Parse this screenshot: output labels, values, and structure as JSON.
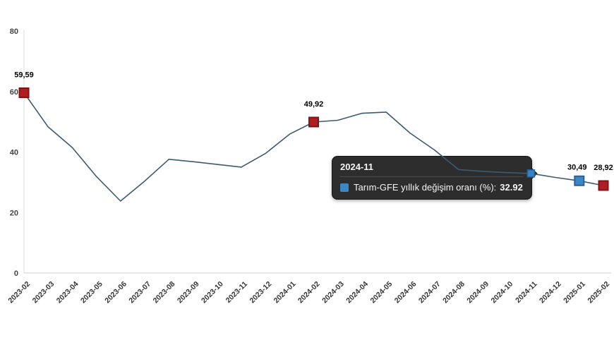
{
  "chart_data": {
    "type": "line",
    "series_name": "Tarım-GFE yıllık değişim oranı (%)",
    "categories": [
      "2023-02",
      "2023-03",
      "2023-04",
      "2023-05",
      "2023-06",
      "2023-07",
      "2023-08",
      "2023-09",
      "2023-10",
      "2023-11",
      "2023-12",
      "2024-01",
      "2024-02",
      "2024-03",
      "2024-04",
      "2024-05",
      "2024-06",
      "2024-07",
      "2024-08",
      "2024-09",
      "2024-10",
      "2024-11",
      "2024-12",
      "2025-01",
      "2025-02"
    ],
    "values": [
      59.59,
      48.3,
      41.5,
      31.9,
      23.8,
      30.4,
      37.6,
      36.8,
      35.9,
      35.0,
      39.5,
      45.9,
      49.92,
      50.5,
      52.8,
      53.2,
      46.2,
      40.7,
      34.2,
      33.6,
      33.2,
      32.92,
      31.6,
      30.49,
      28.92
    ],
    "yticks": [
      0,
      20,
      40,
      60,
      80
    ],
    "ylim": [
      0,
      80
    ],
    "grid": "axis-lines-only",
    "legend_position": "none",
    "line_color": "#3d5a73",
    "axis_color": "#cfcfcf",
    "point_labels": {
      "0": {
        "text": "59,59"
      },
      "12": {
        "text": "49,92"
      },
      "23": {
        "text": "30,49",
        "dx": -3,
        "dy": -16
      },
      "24": {
        "text": "28,92"
      }
    },
    "point_markers": {
      "0": "red",
      "12": "red",
      "21": "blue-small",
      "23": "blue",
      "24": "red"
    },
    "marker_styles": {
      "red": {
        "fill": "#b01e24",
        "stroke": "#7f1316",
        "size": 13,
        "stroke_width": 2
      },
      "blue": {
        "fill": "#3d87c4",
        "stroke": "#2263a0",
        "size": 13,
        "stroke_width": 2
      },
      "blue-small": {
        "fill": "#3583c2",
        "stroke": "#2263a0",
        "size": 10,
        "stroke_width": 1.5
      }
    },
    "tooltip": {
      "title": "2024-11",
      "series_label": "Tarım-GFE yıllık değişim oranı (%):",
      "value": "32.92",
      "anchor_index": 21,
      "swatch_color": "#3d87c4",
      "background": "#2d2d2d"
    }
  }
}
